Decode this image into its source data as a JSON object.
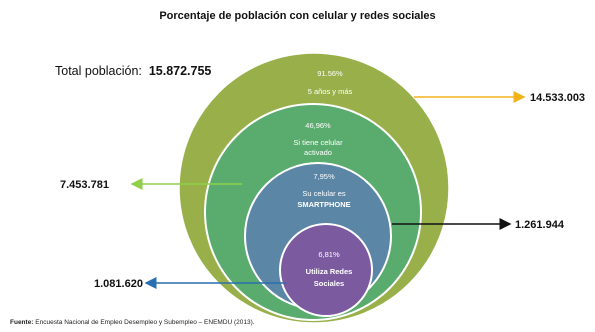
{
  "title": "Porcentaje de población con celular y redes sociales",
  "total": {
    "label": "Total población:",
    "value": "15.872.755"
  },
  "circles": [
    {
      "pct": "91.56%",
      "label": "5 años y más",
      "value": "14.533.003",
      "color": "#99b04a",
      "arrow_color": "#f2b31a"
    },
    {
      "pct": "46,96%",
      "label_lines": [
        "Si tiene celular",
        "activado"
      ],
      "value": "7.453.781",
      "color": "#5aac6e",
      "arrow_color": "#8ed04a"
    },
    {
      "pct": "7,95%",
      "label_lines": [
        "Su celular es",
        "SMARTPHONE"
      ],
      "value": "1.261.944",
      "color": "#5b86a6",
      "arrow_color": "#111111"
    },
    {
      "pct": "6,81%",
      "label_lines": [
        "Utiliza Redes",
        "Sociales"
      ],
      "value": "1.081.620",
      "color": "#7b5aa0",
      "arrow_color": "#2a6fb0"
    }
  ],
  "source": {
    "label": "Fuente:",
    "text": "Encuesta Nacional de Empleo Desempleo y Subempleo – ENEMDU  (2013)."
  }
}
